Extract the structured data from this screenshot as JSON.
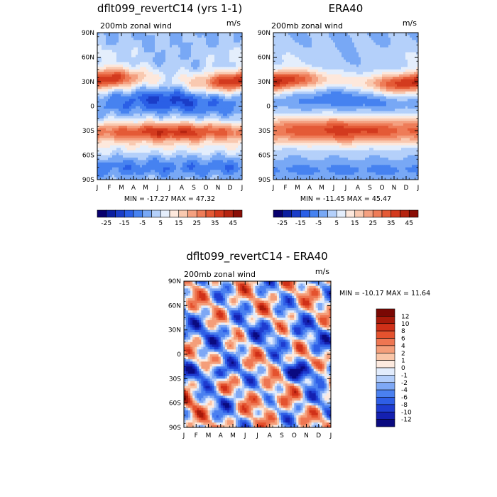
{
  "chart_data": [
    {
      "type": "heatmap",
      "id": "p1",
      "title": "dflt099_revertC14 (yrs 1-1)",
      "subtitle_left": "200mb zonal wind",
      "subtitle_right": "m/s",
      "stats": "MIN = -17.27 MAX =  47.32",
      "x_ticks": [
        "J",
        "F",
        "M",
        "A",
        "M",
        "J",
        "J",
        "A",
        "S",
        "O",
        "N",
        "D",
        "J"
      ],
      "y_ticks": [
        "90N",
        "60N",
        "30N",
        "0",
        "30S",
        "60S",
        "90S"
      ],
      "color_levels": [
        -30,
        -25,
        -20,
        -15,
        -10,
        -5,
        0,
        5,
        10,
        15,
        20,
        25,
        30,
        35,
        40,
        45,
        50
      ],
      "colorbar_labels": [
        "-25",
        "-15",
        "-5",
        "5",
        "15",
        "25",
        "35",
        "45"
      ]
    },
    {
      "type": "heatmap",
      "id": "p2",
      "title": "ERA40",
      "subtitle_left": "200mb zonal wind",
      "subtitle_right": "m/s",
      "stats": "MIN = -11.45 MAX =  45.47",
      "x_ticks": [
        "J",
        "F",
        "M",
        "A",
        "M",
        "J",
        "J",
        "A",
        "S",
        "O",
        "N",
        "D",
        "J"
      ],
      "y_ticks": [
        "90N",
        "60N",
        "30N",
        "0",
        "30S",
        "60S",
        "90S"
      ],
      "color_levels": [
        -30,
        -25,
        -20,
        -15,
        -10,
        -5,
        0,
        5,
        10,
        15,
        20,
        25,
        30,
        35,
        40,
        45,
        50
      ],
      "colorbar_labels": [
        "-25",
        "-15",
        "-5",
        "5",
        "15",
        "25",
        "35",
        "45"
      ]
    },
    {
      "type": "heatmap",
      "id": "p3",
      "title": "dflt099_revertC14 - ERA40",
      "subtitle_left": "200mb zonal wind",
      "subtitle_right": "m/s",
      "stats": "MIN = -10.17 MAX =  11.64",
      "x_ticks": [
        "J",
        "F",
        "M",
        "A",
        "M",
        "J",
        "J",
        "A",
        "S",
        "O",
        "N",
        "D",
        "J"
      ],
      "y_ticks": [
        "90N",
        "60N",
        "30N",
        "0",
        "30S",
        "60S",
        "90S"
      ],
      "color_levels": [
        -14,
        -12,
        -10,
        -8,
        -6,
        -4,
        -2,
        -1,
        0,
        1,
        2,
        4,
        6,
        8,
        10,
        12,
        14
      ],
      "colorbar_labels": [
        "12",
        "10",
        "8",
        "6",
        "4",
        "2",
        "1",
        "0",
        "-1",
        "-2",
        "-4",
        "-6",
        "-8",
        "-10",
        "-12"
      ]
    }
  ],
  "palette_main": [
    "#08006e",
    "#0b1ea0",
    "#1a3dc8",
    "#2a5fe6",
    "#4682f0",
    "#78a8f5",
    "#b4d0fa",
    "#e4eefc",
    "#fde8dc",
    "#f9c9b0",
    "#f4a080",
    "#ee7c58",
    "#e45a36",
    "#d33a1e",
    "#b52410",
    "#8a0e06"
  ],
  "palette_diff": [
    "#0a0a80",
    "#1420b0",
    "#1e3cd0",
    "#2e5ee6",
    "#4a80f0",
    "#7ea8f5",
    "#b2cdfa",
    "#e2ecfc",
    "#fdeadf",
    "#fac6a8",
    "#f49e7a",
    "#ee7652",
    "#e4522e",
    "#d03018",
    "#a81a0a",
    "#7a0804"
  ]
}
